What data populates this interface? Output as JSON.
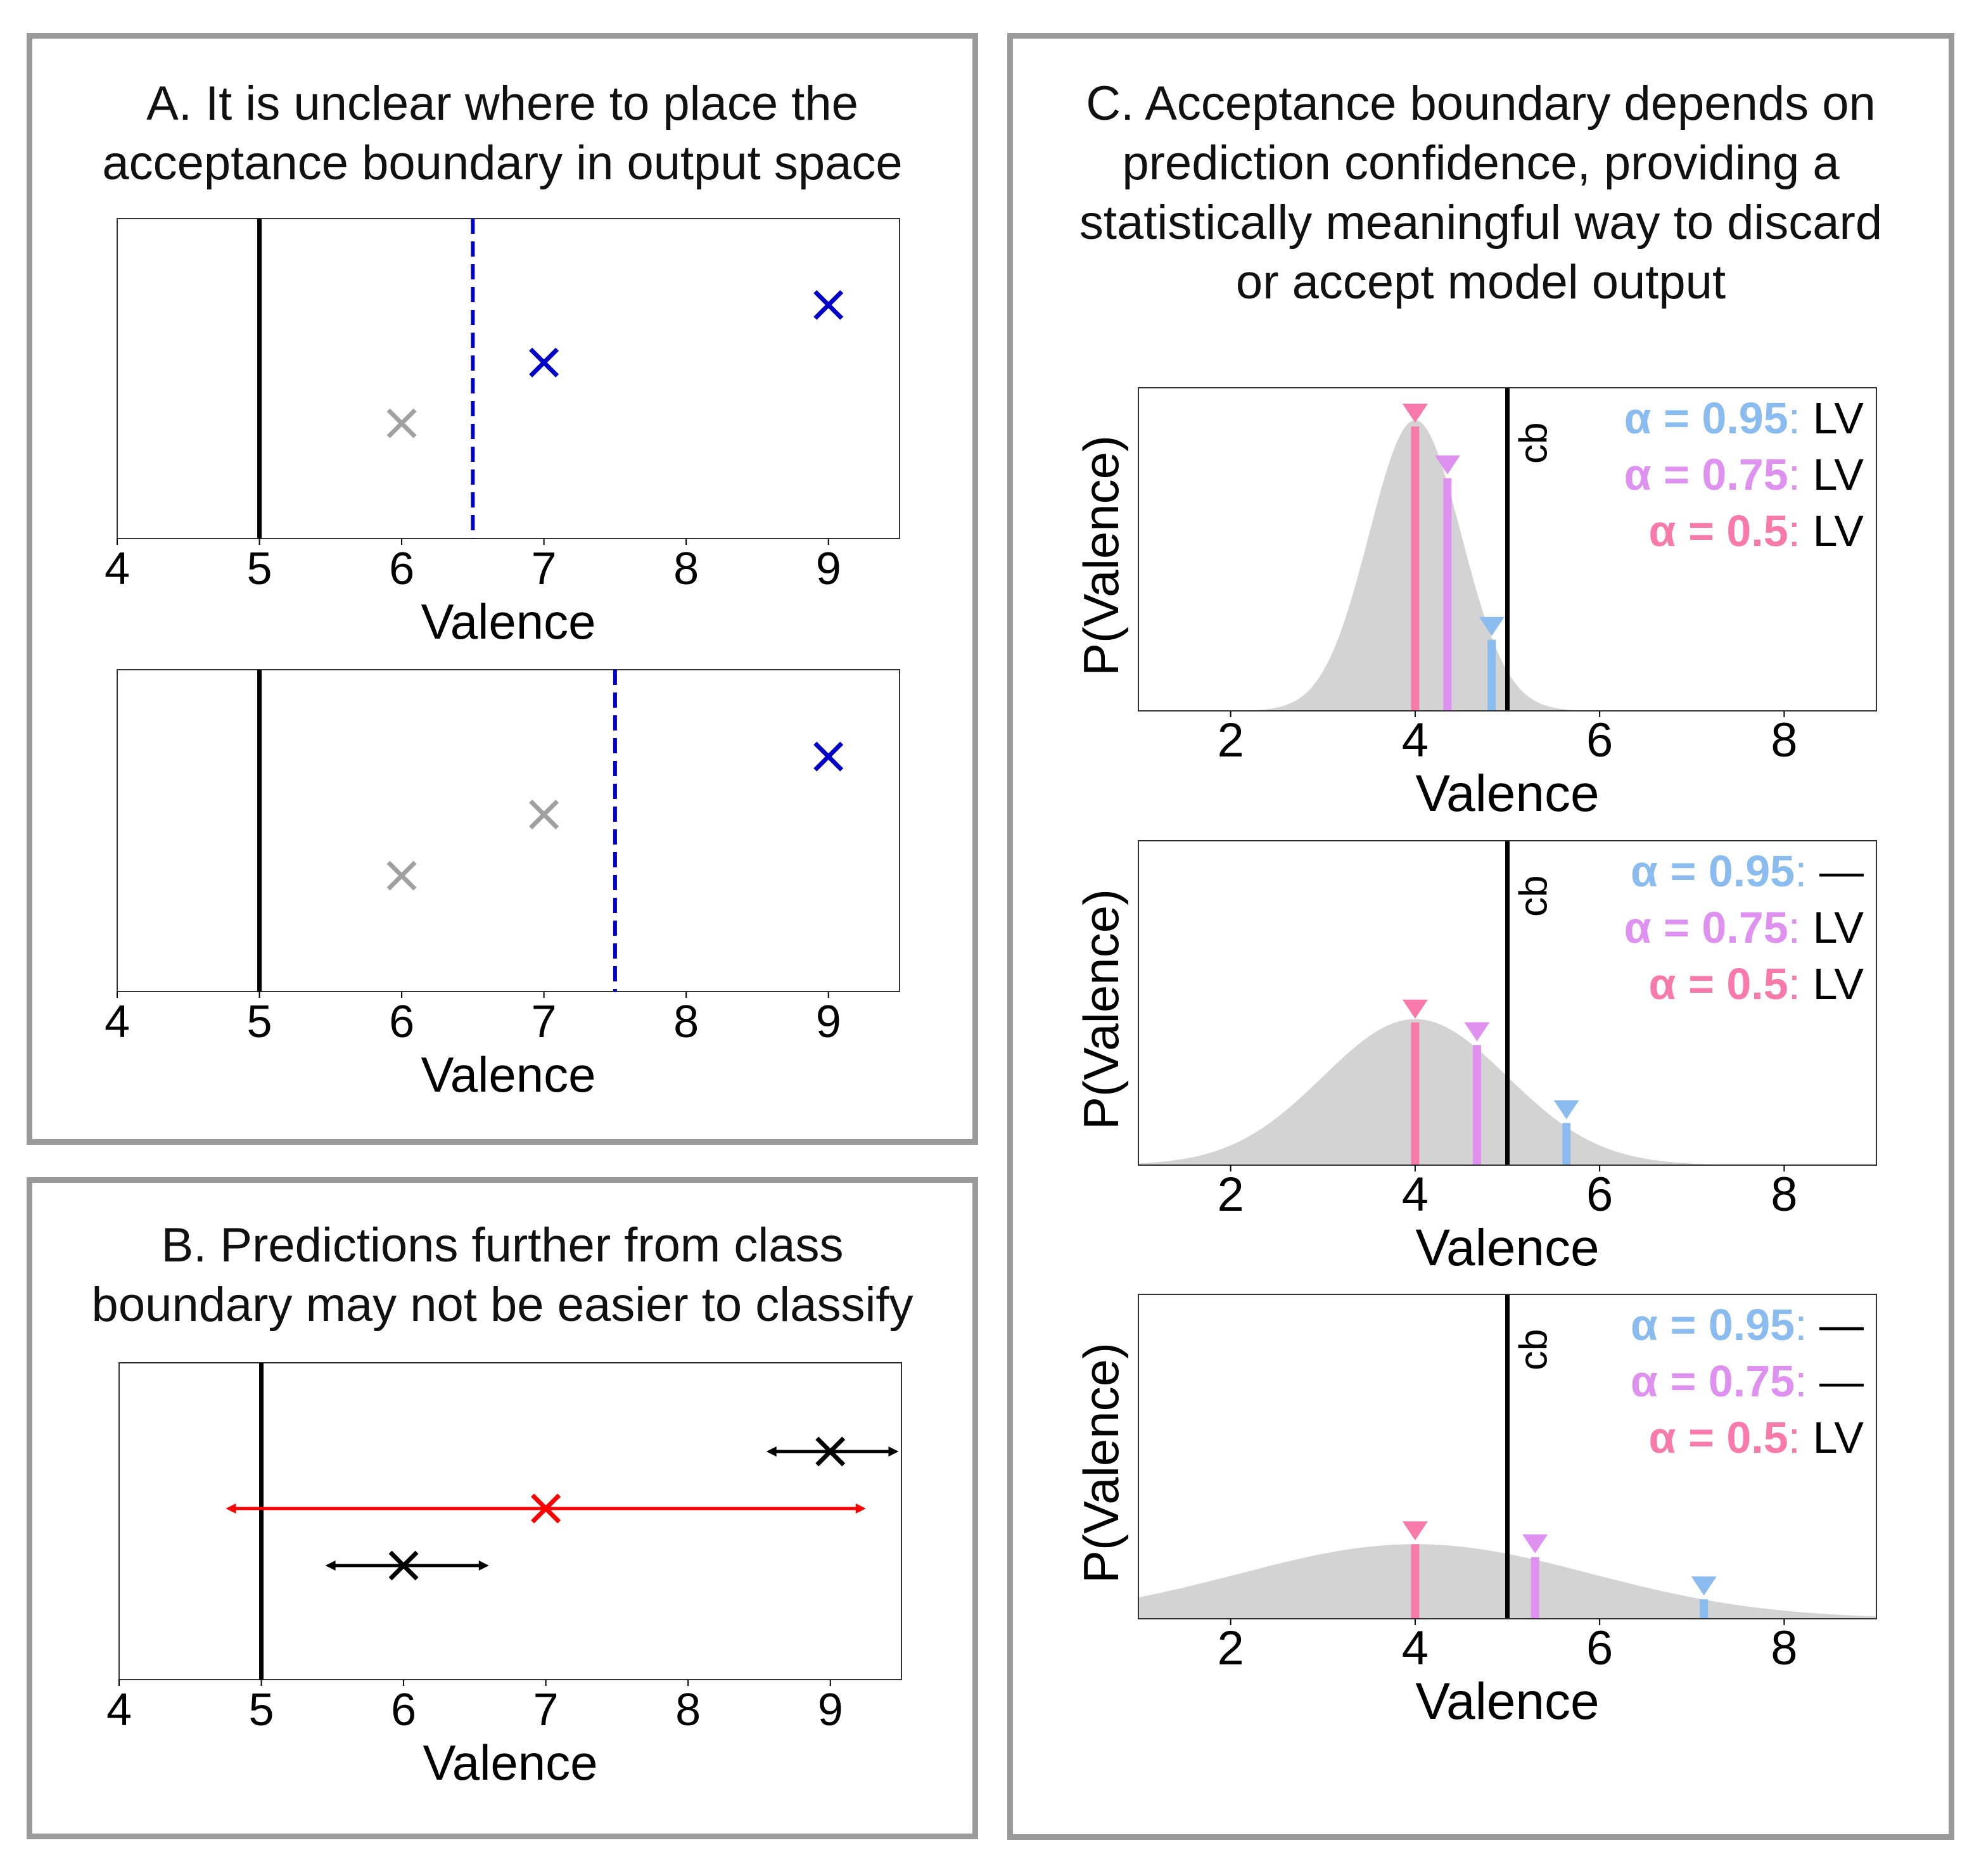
{
  "colors": {
    "frame": "#9a9a9a",
    "accepted": "#0000c8",
    "rejected": "#a0a0a0",
    "boundary": "#0000c8",
    "class_boundary": "#000000",
    "uncertain": "#ff0000",
    "certain": "#000000",
    "density": "#d3d3d3",
    "alpha_095": "#8bbcf0",
    "alpha_075": "#de91ef",
    "alpha_05": "#f77aab"
  },
  "panels": {
    "a": {
      "title": "A. It is unclear where to place the\nacceptance boundary in output space"
    },
    "b": {
      "title": "B. Predictions further from class\nboundary may not be easier to classify"
    },
    "c": {
      "title": "C. Acceptance boundary depends on\nprediction confidence, providing a\nstatistically meaningful way to discard\nor accept model output"
    }
  },
  "chart_data": [
    {
      "id": "A1",
      "panel": "A",
      "type": "scatter",
      "xlabel": "Valence",
      "ylabel": "",
      "xlim": [
        4,
        9.5
      ],
      "ylim": [
        0,
        1
      ],
      "xticks": [
        4,
        5,
        6,
        7,
        8,
        9
      ],
      "class_boundary": 5,
      "acceptance_boundary": 6.5,
      "points": [
        {
          "x": 6,
          "y": 0.36,
          "status": "rejected",
          "marker": "×"
        },
        {
          "x": 7,
          "y": 0.55,
          "status": "accepted",
          "marker": "×"
        },
        {
          "x": 9,
          "y": 0.73,
          "status": "accepted",
          "marker": "×"
        }
      ]
    },
    {
      "id": "A2",
      "panel": "A",
      "type": "scatter",
      "xlabel": "Valence",
      "ylabel": "",
      "xlim": [
        4,
        9.5
      ],
      "ylim": [
        0,
        1
      ],
      "xticks": [
        4,
        5,
        6,
        7,
        8,
        9
      ],
      "class_boundary": 5,
      "acceptance_boundary": 7.5,
      "points": [
        {
          "x": 6,
          "y": 0.36,
          "status": "rejected",
          "marker": "×"
        },
        {
          "x": 7,
          "y": 0.55,
          "status": "rejected",
          "marker": "×"
        },
        {
          "x": 9,
          "y": 0.73,
          "status": "accepted",
          "marker": "×"
        }
      ]
    },
    {
      "id": "B1",
      "panel": "B",
      "type": "scatter",
      "xlabel": "Valence",
      "ylabel": "",
      "xlim": [
        4,
        9.5
      ],
      "ylim": [
        0,
        1
      ],
      "xticks": [
        4,
        5,
        6,
        7,
        8,
        9
      ],
      "class_boundary": 5,
      "points": [
        {
          "x": 6,
          "y": 0.36,
          "err_low": 5.45,
          "err_high": 6.6,
          "status": "certain",
          "marker": "×"
        },
        {
          "x": 7,
          "y": 0.54,
          "err_low": 4.75,
          "err_high": 9.25,
          "status": "uncertain",
          "marker": "×"
        },
        {
          "x": 9,
          "y": 0.72,
          "err_low": 8.55,
          "err_high": 9.48,
          "status": "certain",
          "marker": "×"
        }
      ]
    },
    {
      "id": "C1",
      "panel": "C",
      "type": "area",
      "xlabel": "Valence",
      "ylabel": "P(Valence)",
      "xlim": [
        1,
        9
      ],
      "ylim": [
        0,
        1
      ],
      "xticks": [
        2,
        4,
        6,
        8
      ],
      "distribution": {
        "mean": 4,
        "sd": 0.5,
        "peak": 0.9
      },
      "class_boundary": 5,
      "boundary_label": "cb",
      "markers": [
        {
          "alpha": "0.5",
          "x": 4.0,
          "height": 0.88,
          "color": "#f77aab"
        },
        {
          "alpha": "0.75",
          "x": 4.35,
          "height": 0.72,
          "color": "#de91ef"
        },
        {
          "alpha": "0.95",
          "x": 4.83,
          "height": 0.22,
          "color": "#8bbcf0"
        }
      ],
      "legend": [
        {
          "label": "α = 0.95",
          "value": "LV",
          "color": "#8bbcf0"
        },
        {
          "label": "α = 0.75",
          "value": "LV",
          "color": "#de91ef"
        },
        {
          "label": "α = 0.5",
          "value": "LV",
          "color": "#f77aab"
        }
      ]
    },
    {
      "id": "C2",
      "panel": "C",
      "type": "area",
      "xlabel": "Valence",
      "ylabel": "P(Valence)",
      "xlim": [
        1,
        9
      ],
      "ylim": [
        0,
        1
      ],
      "xticks": [
        2,
        4,
        6,
        8
      ],
      "distribution": {
        "mean": 4,
        "sd": 1.0,
        "peak": 0.45
      },
      "class_boundary": 5,
      "boundary_label": "cb",
      "markers": [
        {
          "alpha": "0.5",
          "x": 4.0,
          "height": 0.44,
          "color": "#f77aab"
        },
        {
          "alpha": "0.75",
          "x": 4.67,
          "height": 0.37,
          "color": "#de91ef"
        },
        {
          "alpha": "0.95",
          "x": 5.64,
          "height": 0.13,
          "color": "#8bbcf0"
        }
      ],
      "legend": [
        {
          "label": "α = 0.95",
          "value": "—",
          "color": "#8bbcf0"
        },
        {
          "label": "α = 0.75",
          "value": "LV",
          "color": "#de91ef"
        },
        {
          "label": "α = 0.5",
          "value": "LV",
          "color": "#f77aab"
        }
      ]
    },
    {
      "id": "C3",
      "panel": "C",
      "type": "area",
      "xlabel": "Valence",
      "ylabel": "P(Valence)",
      "xlim": [
        1,
        9
      ],
      "ylim": [
        0,
        1
      ],
      "xticks": [
        2,
        4,
        6,
        8
      ],
      "distribution": {
        "mean": 4,
        "sd": 1.9,
        "peak": 0.23
      },
      "class_boundary": 5,
      "boundary_label": "cb",
      "markers": [
        {
          "alpha": "0.5",
          "x": 4.0,
          "height": 0.23,
          "color": "#f77aab"
        },
        {
          "alpha": "0.75",
          "x": 5.3,
          "height": 0.19,
          "color": "#de91ef"
        },
        {
          "alpha": "0.95",
          "x": 7.13,
          "height": 0.06,
          "color": "#8bbcf0"
        }
      ],
      "legend": [
        {
          "label": "α = 0.95",
          "value": "—",
          "color": "#8bbcf0"
        },
        {
          "label": "α = 0.75",
          "value": "—",
          "color": "#de91ef"
        },
        {
          "label": "α = 0.5",
          "value": "LV",
          "color": "#f77aab"
        }
      ]
    }
  ]
}
